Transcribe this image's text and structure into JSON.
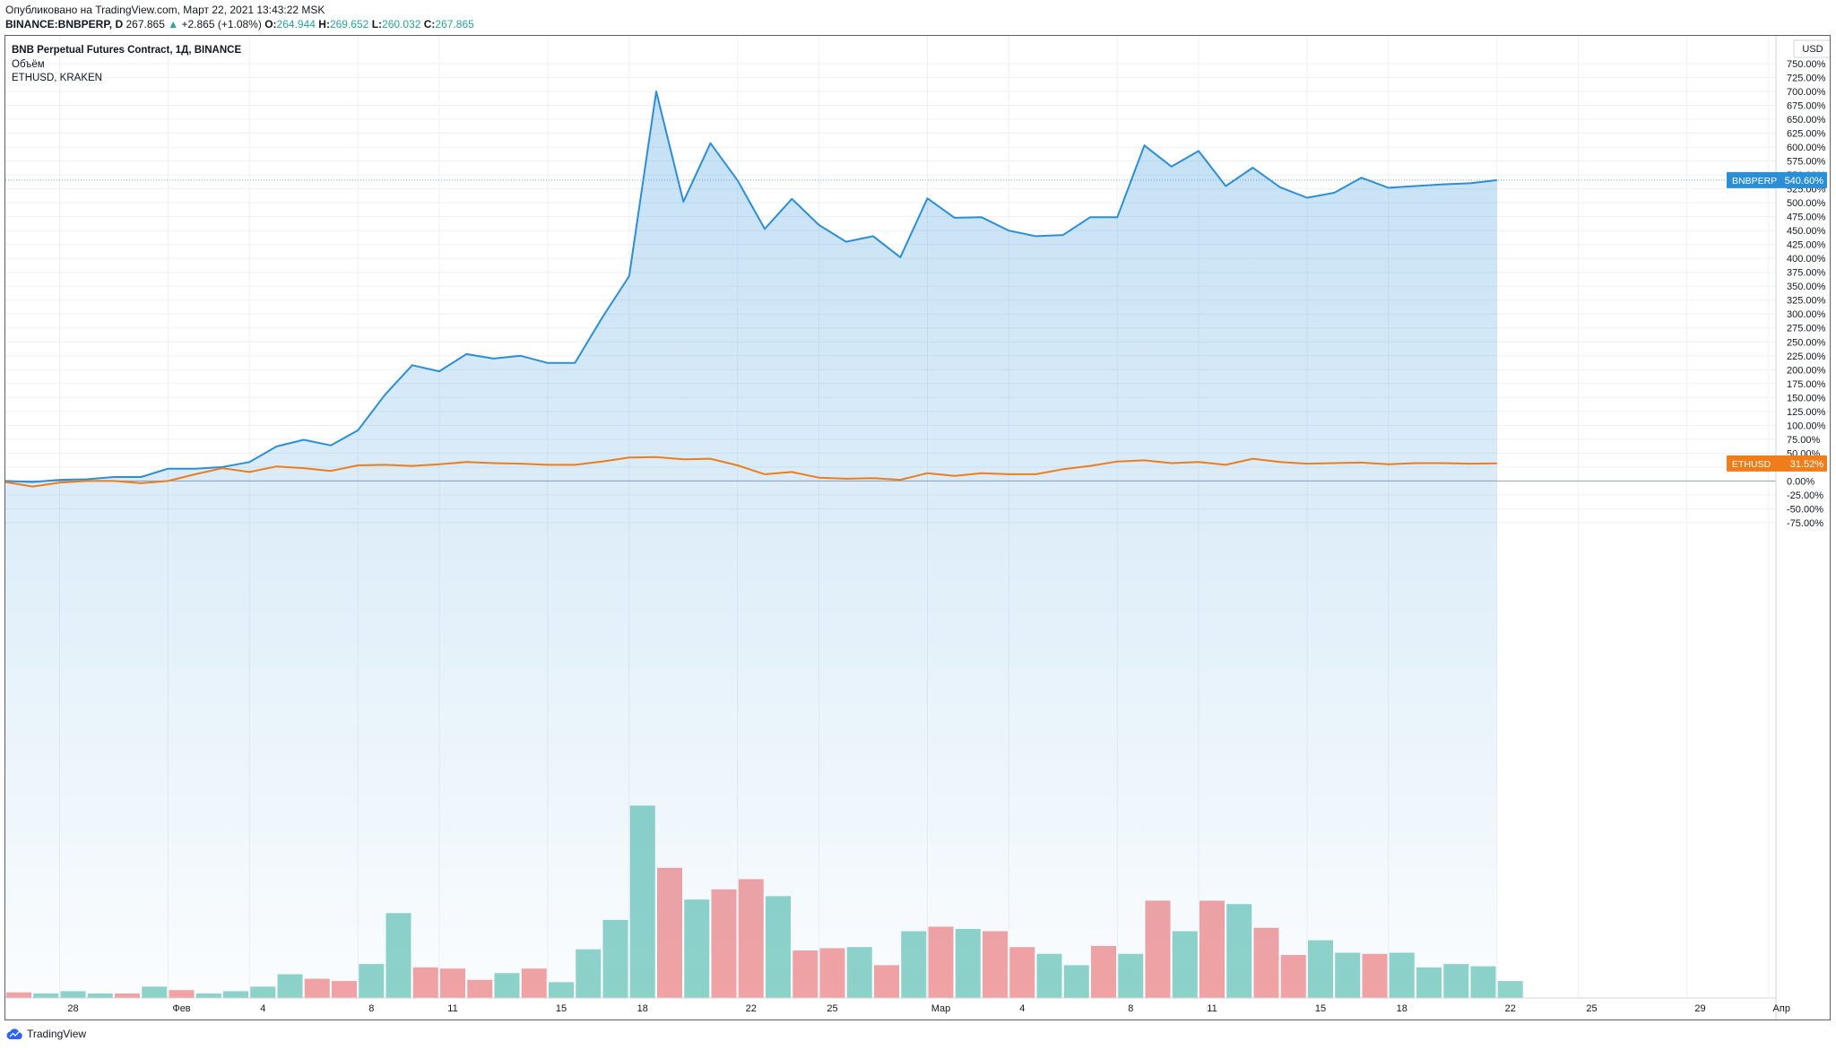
{
  "header": {
    "published": "Опубликовано на TradingView.com, Март 22, 2021 13:43:22 MSK",
    "symbol": "BINANCE:BNBPERP, D",
    "last": "267.865",
    "change_arrow": "▲",
    "change": "+2.865 (+1.08%)",
    "o_label": "O:",
    "o": "264.944",
    "h_label": "H:",
    "h": "269.652",
    "l_label": "L:",
    "l": "260.032",
    "c_label": "C:",
    "c": "267.865"
  },
  "legend": {
    "main": "BNB Perpetual Futures Contract, 1Д, BINANCE",
    "volume": "Объём",
    "compare": "ETHUSD, KRAKEN"
  },
  "footer": {
    "brand": "TradingView"
  },
  "colors": {
    "bnb": "#2b8fd8",
    "eth": "#ef7d1a",
    "vol_up": "#8fd3c9",
    "vol_down": "#f4a3a3",
    "axis_text": "#131722",
    "grid": "#eef1f5"
  },
  "chart_data": {
    "type": "line",
    "x_start_label": "2021-01-26",
    "x_ticks": [
      {
        "label": "28",
        "day": 2
      },
      {
        "label": "Фев",
        "day": 6
      },
      {
        "label": "4",
        "day": 9
      },
      {
        "label": "8",
        "day": 13
      },
      {
        "label": "11",
        "day": 16
      },
      {
        "label": "15",
        "day": 20
      },
      {
        "label": "18",
        "day": 23
      },
      {
        "label": "22",
        "day": 27
      },
      {
        "label": "25",
        "day": 30
      },
      {
        "label": "Мар",
        "day": 34
      },
      {
        "label": "4",
        "day": 37
      },
      {
        "label": "8",
        "day": 41
      },
      {
        "label": "11",
        "day": 44
      },
      {
        "label": "15",
        "day": 48
      },
      {
        "label": "18",
        "day": 51
      },
      {
        "label": "22",
        "day": 55
      },
      {
        "label": "25",
        "day": 58
      },
      {
        "label": "29",
        "day": 62
      },
      {
        "label": "Апр",
        "day": 65
      }
    ],
    "y_unit": "%",
    "currency": "USD",
    "ylim": [
      -75,
      775
    ],
    "y_ticks": [
      -75,
      -50,
      -25,
      0,
      25,
      50,
      75,
      100,
      125,
      150,
      175,
      200,
      225,
      250,
      275,
      300,
      325,
      350,
      375,
      400,
      425,
      450,
      475,
      500,
      525,
      550,
      575,
      600,
      625,
      650,
      675,
      700,
      725,
      750
    ],
    "y_tick_labels": [
      "-75.00%",
      "-50.00%",
      "-25.00%",
      "0.00%",
      "25.00%",
      "50.00%",
      "75.00%",
      "100.00%",
      "125.00%",
      "150.00%",
      "175.00%",
      "200.00%",
      "225.00%",
      "250.00%",
      "275.00%",
      "300.00%",
      "325.00%",
      "350.00%",
      "375.00%",
      "400.00%",
      "425.00%",
      "450.00%",
      "475.00%",
      "500.00%",
      "525.00%",
      "550.00%",
      "575.00%",
      "600.00%",
      "625.00%",
      "650.00%",
      "675.00%",
      "700.00%",
      "725.00%",
      "750.00%"
    ],
    "series": [
      {
        "name": "BNBPERP",
        "badge": "540.60%",
        "values": [
          0,
          -2,
          2,
          3,
          7,
          7,
          22,
          22,
          25,
          34,
          62,
          74,
          64,
          91,
          155,
          208,
          197,
          228,
          220,
          225,
          212,
          212,
          293,
          368,
          700,
          502,
          607,
          540,
          453,
          507,
          460,
          430,
          440,
          402,
          508,
          473,
          474,
          450,
          440,
          442,
          474,
          474,
          603,
          565,
          593,
          530,
          563,
          528,
          509,
          518,
          545,
          527,
          530,
          533,
          535,
          540.6
        ]
      },
      {
        "name": "ETHUSD",
        "badge": "31.52%",
        "values": [
          -2,
          -10,
          -3,
          0,
          0,
          -4,
          0,
          12,
          23,
          16,
          26,
          23,
          18,
          28,
          29,
          27,
          30,
          34,
          32,
          31,
          29,
          29,
          35,
          42,
          43,
          39,
          40,
          28,
          12,
          16,
          6,
          4,
          5,
          2,
          14,
          9,
          14,
          12,
          12,
          21,
          27,
          35,
          37,
          32,
          34,
          29,
          40,
          34,
          31,
          32,
          33,
          30,
          32,
          32,
          31,
          31.5
        ]
      }
    ],
    "volume": {
      "scale_max": 140,
      "values": [
        5,
        4,
        6,
        4,
        4,
        10,
        7,
        4,
        6,
        10,
        21,
        17,
        15,
        30,
        75,
        27,
        26,
        16,
        22,
        26,
        14,
        43,
        69,
        170,
        115,
        87,
        96,
        105,
        90,
        42,
        44,
        45,
        29,
        59,
        63,
        61,
        59,
        45,
        39,
        29,
        46,
        39,
        86,
        59,
        86,
        83,
        62,
        38,
        51,
        40,
        39,
        40,
        27,
        30,
        28,
        15
      ],
      "up": [
        0,
        1,
        1,
        1,
        0,
        1,
        0,
        1,
        1,
        1,
        1,
        0,
        0,
        1,
        1,
        0,
        0,
        0,
        1,
        0,
        1,
        1,
        1,
        1,
        0,
        1,
        0,
        0,
        1,
        0,
        0,
        1,
        0,
        1,
        0,
        1,
        0,
        0,
        1,
        1,
        0,
        1,
        0,
        1,
        0,
        1,
        0,
        0,
        1,
        1,
        0,
        1,
        1,
        1,
        1,
        1
      ]
    }
  }
}
